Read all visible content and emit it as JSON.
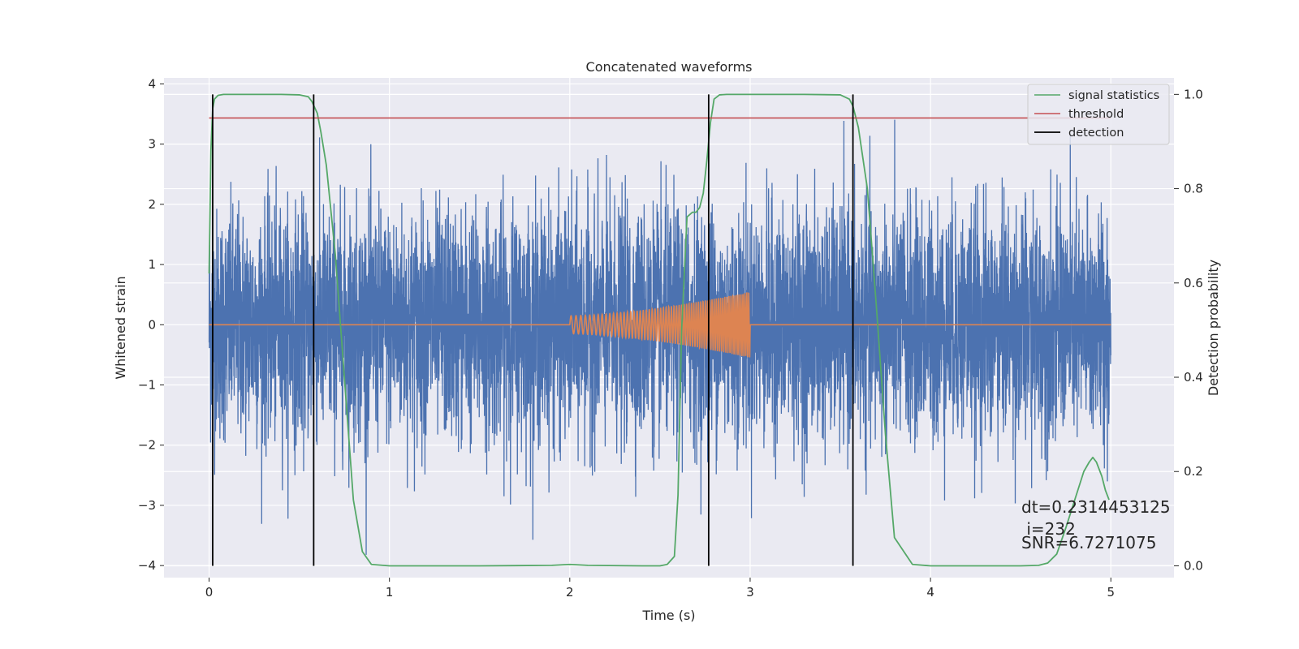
{
  "chart_data": {
    "type": "line",
    "title": "Concatenated waveforms",
    "xlabel": "Time (s)",
    "ylabel": "Whitened strain",
    "y2label": "Detection probability",
    "xlim": [
      -0.25,
      5.35
    ],
    "ylim": [
      -4.2,
      4.1
    ],
    "y2lim": [
      -0.025,
      1.035
    ],
    "xticks": [
      0,
      1,
      2,
      3,
      4,
      5
    ],
    "yticks": [
      -4,
      -3,
      -2,
      -1,
      0,
      1,
      2,
      3,
      4
    ],
    "y2ticks": [
      0.0,
      0.2,
      0.4,
      0.6,
      0.8,
      1.0
    ],
    "grid": true,
    "legend_position": "top-right",
    "colors": {
      "strain": "#4c72b0",
      "template": "#dd8452",
      "signal_statistics": "#55a868",
      "threshold": "#c44e52",
      "detection": "#000000",
      "background": "#eaeaf2",
      "grid": "#ffffff"
    },
    "strain": {
      "x_range": [
        0,
        5
      ],
      "noise_std": 0.95,
      "peak_min": -3.95,
      "peak_max": 3.7
    },
    "template": {
      "name": "",
      "x_range": [
        2,
        3
      ],
      "f_start": 35,
      "f_end": 95,
      "amp_start": 0.15,
      "amp_end": 0.55
    },
    "series": [
      {
        "name": "signal statistics",
        "axis": "right",
        "x": [
          0,
          0.01,
          0.02,
          0.03,
          0.05,
          0.08,
          0.12,
          0.2,
          0.3,
          0.4,
          0.5,
          0.55,
          0.57,
          0.6,
          0.62,
          0.65,
          0.7,
          0.75,
          0.8,
          0.85,
          0.9,
          1.0,
          1.5,
          1.9,
          2.0,
          2.1,
          2.4,
          2.5,
          2.54,
          2.58,
          2.6,
          2.62,
          2.65,
          2.68,
          2.7,
          2.72,
          2.74,
          2.76,
          2.78,
          2.8,
          2.83,
          2.87,
          2.9,
          3.0,
          3.3,
          3.5,
          3.55,
          3.57,
          3.6,
          3.65,
          3.7,
          3.75,
          3.8,
          3.9,
          4.0,
          4.5,
          4.6,
          4.65,
          4.7,
          4.75,
          4.8,
          4.85,
          4.88,
          4.9,
          4.92,
          4.95,
          4.97,
          4.99
        ],
        "y": [
          0.62,
          0.88,
          0.97,
          0.99,
          0.998,
          1.0,
          1.0,
          1.0,
          1.0,
          1.0,
          0.999,
          0.995,
          0.985,
          0.96,
          0.92,
          0.85,
          0.66,
          0.4,
          0.14,
          0.03,
          0.003,
          0.0,
          0.0,
          0.001,
          0.003,
          0.001,
          0.0,
          0.0,
          0.003,
          0.02,
          0.15,
          0.5,
          0.74,
          0.75,
          0.75,
          0.76,
          0.79,
          0.86,
          0.94,
          0.99,
          0.999,
          1.0,
          1.0,
          1.0,
          1.0,
          0.999,
          0.99,
          0.975,
          0.93,
          0.8,
          0.55,
          0.28,
          0.06,
          0.003,
          0.0,
          0.0,
          0.001,
          0.006,
          0.025,
          0.08,
          0.14,
          0.2,
          0.22,
          0.23,
          0.22,
          0.19,
          0.16,
          0.14
        ]
      },
      {
        "name": "threshold",
        "axis": "right",
        "x": [
          0,
          5
        ],
        "y": [
          0.95,
          0.95
        ]
      },
      {
        "name": "detection",
        "axis": "right",
        "x": [
          0.02,
          0.58,
          2.77,
          3.57
        ],
        "y": [
          1.0,
          1.0,
          1.0,
          1.0
        ]
      }
    ],
    "legend": [
      "signal statistics",
      "threshold",
      "detection"
    ],
    "annotations": {
      "dt": "dt=0.2314453125",
      "i": " i=232",
      "snr": "SNR=6.7271075"
    }
  }
}
